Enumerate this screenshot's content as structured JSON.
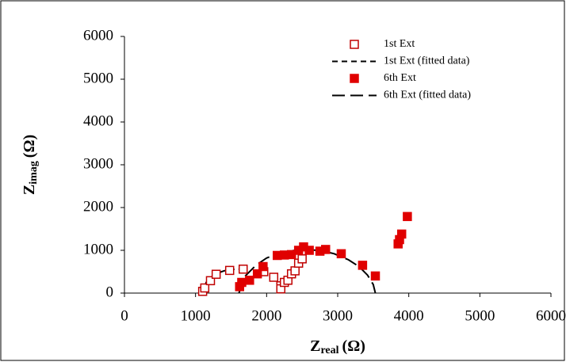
{
  "chart_data": {
    "type": "scatter",
    "xlabel": {
      "symbol": "Z",
      "subscript": "real",
      "unit": "(Ω)"
    },
    "ylabel": {
      "symbol": "Z",
      "subscript": "imag",
      "unit": "(Ω)"
    },
    "xlim": [
      0,
      6000
    ],
    "ylim": [
      0,
      6000
    ],
    "xticks": [
      0,
      1000,
      2000,
      3000,
      4000,
      5000,
      6000
    ],
    "yticks": [
      0,
      1000,
      2000,
      3000,
      4000,
      5000,
      6000
    ],
    "grid": false,
    "legend": "top-right",
    "series": [
      {
        "name": "1st Ext",
        "color": "#c00000",
        "style": "open-square",
        "x": [
          1100,
          1130,
          1210,
          1290,
          1480,
          1670,
          1960,
          2100,
          2200,
          2200,
          2250,
          2300,
          2350,
          2400,
          2450,
          2500
        ],
        "y": [
          40,
          120,
          290,
          440,
          530,
          560,
          500,
          370,
          170,
          100,
          250,
          300,
          450,
          520,
          700,
          800
        ]
      },
      {
        "name": "1st Ext (fitted data)",
        "color": "#000000",
        "style": "short-dash",
        "x": [
          1100,
          1150,
          1200,
          1300,
          1400,
          1500,
          1600,
          1700
        ],
        "y": [
          0,
          250,
          350,
          460,
          520,
          550,
          560,
          555
        ]
      },
      {
        "name": "6th Ext",
        "color": "#e00000",
        "style": "filled-square",
        "x": [
          1620,
          1650,
          1760,
          1870,
          1950,
          2150,
          2250,
          2350,
          2450,
          2520,
          2600,
          2750,
          2830,
          3050,
          3350,
          3530,
          3850,
          3870,
          3900,
          3980
        ],
        "y": [
          150,
          250,
          300,
          450,
          620,
          880,
          890,
          900,
          1000,
          1080,
          1000,
          980,
          1020,
          920,
          650,
          400,
          1150,
          1250,
          1380,
          1790
        ]
      },
      {
        "name": "6th Ext (fitted data)",
        "color": "#000000",
        "style": "long-dash",
        "x": [
          1610,
          1700,
          1850,
          2000,
          2200,
          2400,
          2570,
          2750,
          2950,
          3150,
          3300,
          3420,
          3500,
          3530
        ],
        "y": [
          0,
          400,
          650,
          820,
          950,
          1000,
          1010,
          1000,
          920,
          780,
          620,
          420,
          200,
          0
        ]
      }
    ]
  }
}
